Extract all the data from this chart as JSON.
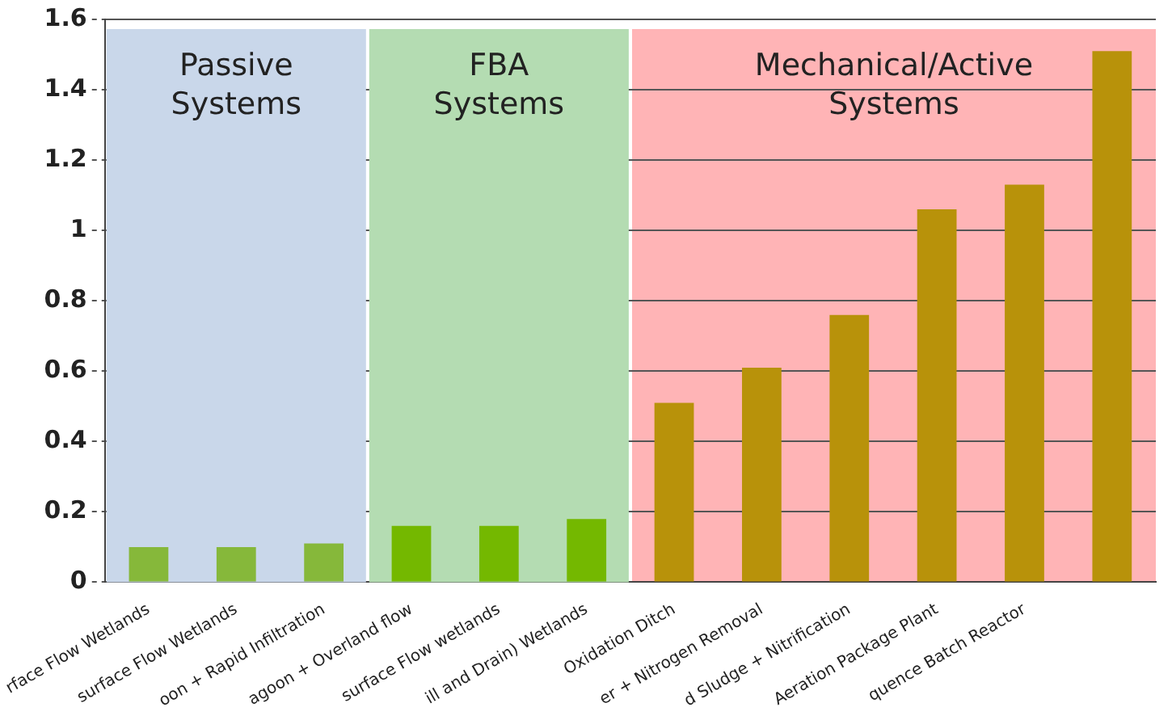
{
  "chart_data": {
    "type": "bar",
    "categories": [
      "rface Flow Wetlands",
      "surface Flow Wetlands",
      "oon + Rapid Infiltration",
      "agoon + Overland flow",
      "surface Flow wetlands",
      "ill and Drain) Wetlands",
      "Oxidation Ditch",
      "er + Nitrogen Removal",
      "d Sludge + Nitrification",
      "Aeration Package Plant",
      "quence Batch Reactor",
      null
    ],
    "values": [
      0.1,
      0.1,
      0.11,
      0.16,
      0.16,
      0.18,
      0.51,
      0.61,
      0.76,
      1.06,
      1.13,
      1.51
    ],
    "colors": [
      "#86b83a",
      "#86b83a",
      "#86b83a",
      "#74b800",
      "#74b800",
      "#74b800",
      "#b8920a",
      "#b8920a",
      "#b8920a",
      "#b8920a",
      "#b8920a",
      "#b8920a"
    ],
    "ylim": [
      0,
      1.6
    ],
    "yticks": [
      0,
      {
        "value": 0.2,
        "label": "0.2"
      },
      {
        "value": 0.4,
        "label": "0.4"
      },
      {
        "value": 0.6,
        "label": "0.6"
      },
      {
        "value": 0.8,
        "label": "0.8"
      },
      1,
      {
        "value": 1.2,
        "label": "1.2"
      },
      {
        "value": 1.4,
        "label": "1.4"
      },
      {
        "value": 1.6,
        "label": "1.6"
      }
    ],
    "grid": "y",
    "bands": [
      {
        "axis": "x",
        "from": "rface Flow Wetlands",
        "to": "oon + Rapid Infiltration",
        "label": "Passive\nSystems",
        "color": "#c9d7ea"
      },
      {
        "axis": "x",
        "from": "agoon + Overland flow",
        "to": "ill and Drain) Wetlands",
        "label": "FBA\nSystems",
        "color": "#b4dcb2"
      }
    ],
    "annotations": [
      "Mechanical/Active\nSystems"
    ]
  }
}
